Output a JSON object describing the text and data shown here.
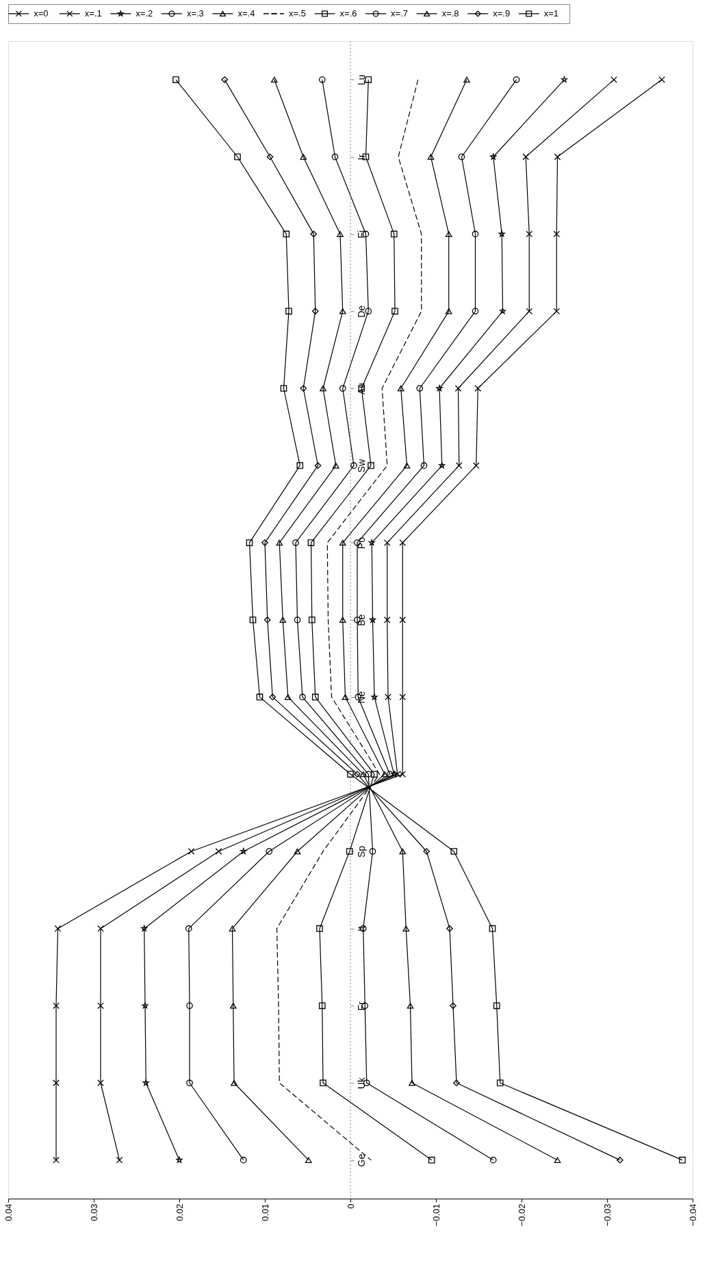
{
  "chart_data": {
    "type": "line",
    "orientation": "horizontal",
    "categories": [
      "Lu",
      "Ir",
      "Fi",
      "De",
      "Au",
      "Sw",
      "Po",
      "Be",
      "Ne",
      null,
      "Sp",
      "It",
      "Fr",
      "Uk",
      "Ge"
    ],
    "xlim": [
      0.04,
      -0.04
    ],
    "xticks": [
      0.04,
      0.03,
      0.02,
      0.01,
      0,
      -0.01,
      -0.02,
      -0.03,
      -0.04
    ],
    "grid": false,
    "legend": "top",
    "ref_lines": [
      {
        "axis": "x",
        "value": 0,
        "color": "#888888",
        "line_style": "dotted"
      }
    ],
    "series": [
      {
        "name": "x=0",
        "color": "#000000",
        "marker": "cross",
        "values": [
          -0.0364,
          -0.0242,
          -0.0241,
          -0.0241,
          -0.0149,
          -0.0147,
          -0.0061,
          -0.0061,
          -0.0061,
          -0.0061,
          0.0186,
          0.0342,
          0.0344,
          0.0344,
          0.0344
        ]
      },
      {
        "name": "x=.1",
        "color": "#000000",
        "marker": "cross",
        "values": [
          -0.0308,
          -0.0205,
          -0.0209,
          -0.0209,
          -0.0126,
          -0.0127,
          -0.0043,
          -0.0043,
          -0.0044,
          -0.0055,
          0.0154,
          0.0292,
          0.0292,
          0.0292,
          0.027
        ]
      },
      {
        "name": "x=.2",
        "color": "#000000",
        "marker": "star",
        "values": [
          -0.025,
          -0.0167,
          -0.0177,
          -0.0178,
          -0.0104,
          -0.0107,
          -0.0025,
          -0.0026,
          -0.0028,
          -0.0051,
          0.0125,
          0.0241,
          0.024,
          0.0239,
          0.02
        ]
      },
      {
        "name": "x=.3",
        "color": "#000000",
        "marker": "circle",
        "values": [
          -0.0194,
          -0.013,
          -0.0146,
          -0.0146,
          -0.0081,
          -0.0086,
          -0.0008,
          -0.0008,
          -0.0009,
          -0.0046,
          0.0095,
          0.0189,
          0.0188,
          0.0188,
          0.0125
        ]
      },
      {
        "name": "x=.4",
        "color": "#000000",
        "marker": "triangle",
        "values": [
          -0.0136,
          -0.0094,
          -0.0115,
          -0.0115,
          -0.0059,
          -0.0066,
          0.0009,
          0.0009,
          0.0006,
          -0.004,
          0.0062,
          0.0138,
          0.0137,
          0.0136,
          0.0049
        ]
      },
      {
        "name": "x=.5",
        "color": "#000000",
        "marker": "none",
        "line_style": "dashed",
        "values": [
          -0.0079,
          -0.0056,
          -0.0083,
          -0.0083,
          -0.0037,
          -0.0043,
          0.0027,
          0.0026,
          0.0022,
          -0.0034,
          0.0032,
          0.0086,
          0.0084,
          0.0083,
          -0.0024
        ]
      },
      {
        "name": "x=.6",
        "color": "#000000",
        "marker": "square",
        "values": [
          -0.0021,
          -0.0018,
          -0.0051,
          -0.0052,
          -0.0013,
          -0.0024,
          0.0046,
          0.0045,
          0.0041,
          -0.0028,
          0.0001,
          0.0036,
          0.0033,
          0.0032,
          -0.0095
        ]
      },
      {
        "name": "x=.7",
        "color": "#000000",
        "marker": "circle",
        "values": [
          0.0033,
          0.0018,
          -0.0018,
          -0.0021,
          0.0009,
          -0.0004,
          0.0064,
          0.0062,
          0.0056,
          -0.0021,
          -0.0026,
          -0.0015,
          -0.0017,
          -0.0019,
          -0.0167
        ]
      },
      {
        "name": "x=.8",
        "color": "#000000",
        "marker": "triangle",
        "values": [
          0.0089,
          0.0055,
          0.0012,
          0.0009,
          0.0032,
          0.0017,
          0.0083,
          0.0079,
          0.0073,
          -0.0015,
          -0.0061,
          -0.0065,
          -0.007,
          -0.0072,
          -0.0242
        ]
      },
      {
        "name": "x=.9",
        "color": "#000000",
        "marker": "diamond",
        "values": [
          0.0147,
          0.0094,
          0.0043,
          0.0041,
          0.0055,
          0.0038,
          0.01,
          0.0097,
          0.0091,
          -0.0008,
          -0.0089,
          -0.0116,
          -0.012,
          -0.0124,
          -0.0315
        ]
      },
      {
        "name": "x=1",
        "color": "#000000",
        "marker": "square",
        "values": [
          0.0204,
          0.0132,
          0.0075,
          0.0072,
          0.0078,
          0.0059,
          0.0118,
          0.0114,
          0.0106,
          0.0,
          -0.0121,
          -0.0166,
          -0.0171,
          -0.0175,
          -0.0388
        ]
      }
    ]
  }
}
